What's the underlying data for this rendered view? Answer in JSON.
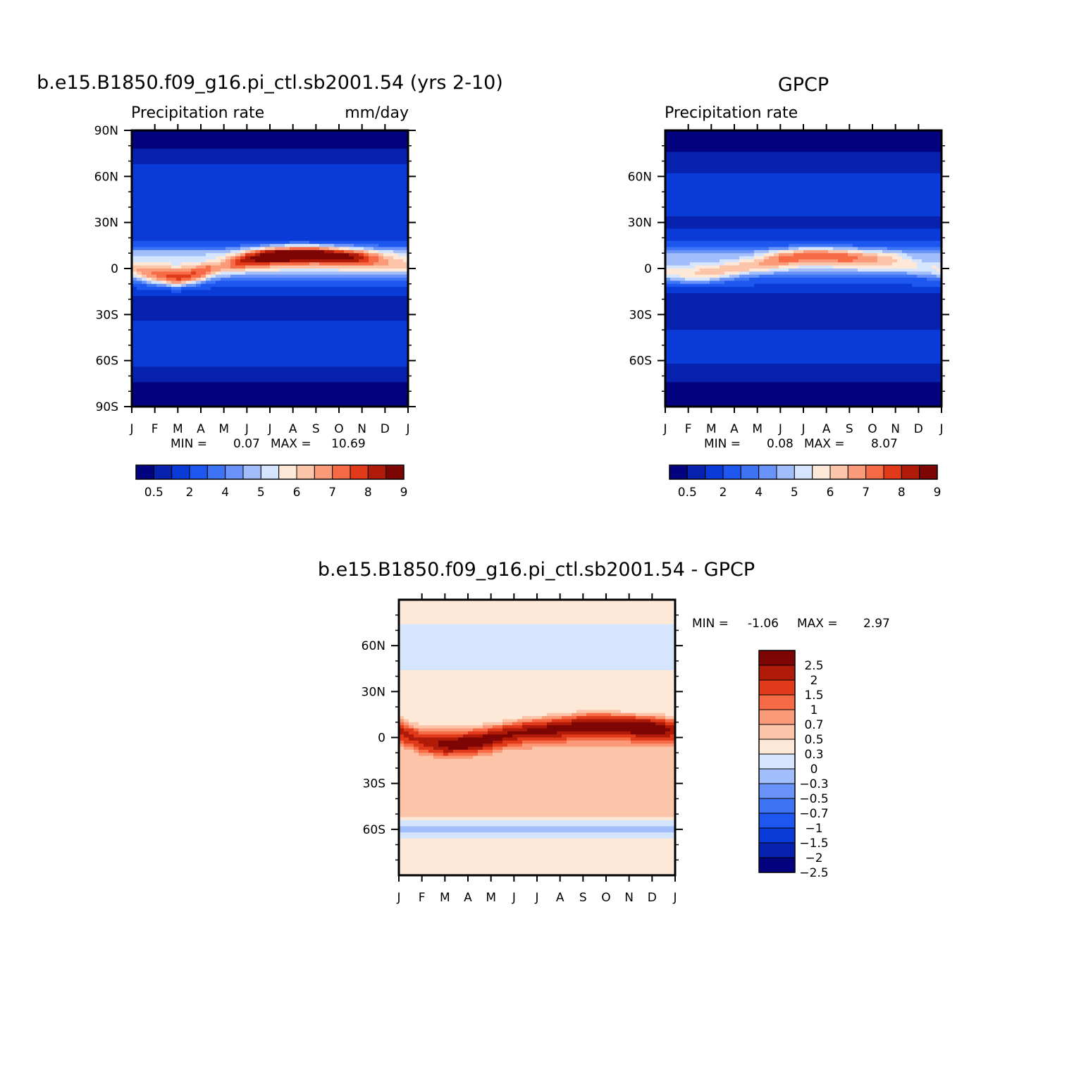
{
  "chart_data": [
    {
      "type": "heatmap",
      "title": "b.e15.B1850.f09_g16.pi_ctl.sb2001.54 (yrs 2-10)",
      "subtitle_left": "Precipitation rate",
      "subtitle_right": "mm/day",
      "x_tick_labels": [
        "J",
        "F",
        "M",
        "A",
        "M",
        "J",
        "J",
        "A",
        "S",
        "O",
        "N",
        "D",
        "J"
      ],
      "y_tick_labels": [
        "90N",
        "60N",
        "30N",
        "0",
        "30S",
        "60S",
        "90S"
      ],
      "y_tick_values": [
        90,
        60,
        30,
        0,
        -30,
        -60,
        -90
      ],
      "ylim": [
        -90,
        90
      ],
      "min_label": "MIN =",
      "min_value": "0.07",
      "max_label": "MAX =",
      "max_value": "10.69",
      "colorbar": {
        "orientation": "horizontal",
        "levels": [
          0.5,
          1,
          2,
          3,
          4,
          4.5,
          5,
          5.5,
          6,
          6.5,
          7,
          7.5,
          8,
          8.5,
          9
        ],
        "labels": [
          "0.5",
          "2",
          "4",
          "5",
          "6",
          "7",
          "8",
          "9"
        ],
        "colors": [
          "#04037f",
          "#0622ae",
          "#0a3bd8",
          "#1e56f0",
          "#3d74f5",
          "#6993f8",
          "#a1bdfa",
          "#d4e5fd",
          "#fee9d9",
          "#fcc4a8",
          "#fa9a78",
          "#f66b45",
          "#e03a1a",
          "#b01a08",
          "#7d0604"
        ]
      },
      "zonal_profile": {
        "latitudes": [
          -90,
          -80,
          -70,
          -60,
          -50,
          -40,
          -30,
          -20,
          -10,
          0,
          10,
          20,
          30,
          40,
          50,
          60,
          70,
          80,
          90
        ],
        "values": [
          0.3,
          0.6,
          1.2,
          2.4,
          3.0,
          2.8,
          1.6,
          1.4,
          3.6,
          5.8,
          5.4,
          2.2,
          2.0,
          2.4,
          2.8,
          2.6,
          1.8,
          0.9,
          0.4
        ]
      },
      "itcz": {
        "months": [
          "J",
          "F",
          "M",
          "A",
          "M",
          "J",
          "J",
          "A",
          "S",
          "O",
          "N",
          "D",
          "J"
        ],
        "center_latitude": [
          -2,
          -5,
          -7,
          -4,
          2,
          6,
          8,
          9,
          9,
          8,
          7,
          5,
          3
        ],
        "peak_rate": [
          6.5,
          7.5,
          8.2,
          7.8,
          7.2,
          8.8,
          10.2,
          10.6,
          10.3,
          9.6,
          8.6,
          7.2,
          6.5
        ]
      }
    },
    {
      "type": "heatmap",
      "title": "GPCP",
      "subtitle_left": "Precipitation rate",
      "x_tick_labels": [
        "J",
        "F",
        "M",
        "A",
        "M",
        "J",
        "J",
        "A",
        "S",
        "O",
        "N",
        "D",
        "J"
      ],
      "y_tick_labels": [
        "60N",
        "30N",
        "0",
        "30S",
        "60S"
      ],
      "y_tick_values": [
        60,
        30,
        0,
        -30,
        -60
      ],
      "ylim": [
        -90,
        90
      ],
      "min_label": "MIN =",
      "min_value": "0.08",
      "max_label": "MAX =",
      "max_value": "8.07",
      "colorbar": {
        "orientation": "horizontal",
        "levels": [
          0.5,
          1,
          2,
          3,
          4,
          4.5,
          5,
          5.5,
          6,
          6.5,
          7,
          7.5,
          8,
          8.5,
          9
        ],
        "labels": [
          "0.5",
          "2",
          "4",
          "5",
          "6",
          "7",
          "8",
          "9"
        ],
        "colors": [
          "#04037f",
          "#0622ae",
          "#0a3bd8",
          "#1e56f0",
          "#3d74f5",
          "#6993f8",
          "#a1bdfa",
          "#d4e5fd",
          "#fee9d9",
          "#fcc4a8",
          "#fa9a78",
          "#f66b45",
          "#e03a1a",
          "#b01a08",
          "#7d0604"
        ]
      },
      "zonal_profile": {
        "latitudes": [
          -90,
          -80,
          -70,
          -60,
          -50,
          -40,
          -30,
          -20,
          -10,
          0,
          10,
          20,
          30,
          40,
          50,
          60,
          70,
          80,
          90
        ],
        "values": [
          0.3,
          0.6,
          1.3,
          2.1,
          2.5,
          2.0,
          1.3,
          1.1,
          3.2,
          5.2,
          5.0,
          2.2,
          1.8,
          2.3,
          2.5,
          2.2,
          1.5,
          0.7,
          0.3
        ]
      },
      "itcz": {
        "months": [
          "J",
          "F",
          "M",
          "A",
          "M",
          "J",
          "J",
          "A",
          "S",
          "O",
          "N",
          "D",
          "J"
        ],
        "center_latitude": [
          -4,
          -5,
          -4,
          -1,
          3,
          6,
          8,
          8,
          7,
          6,
          5,
          1,
          -3
        ],
        "peak_rate": [
          5.8,
          6.2,
          6.6,
          6.8,
          7.0,
          7.6,
          8.0,
          8.0,
          7.8,
          7.2,
          6.6,
          6.0,
          5.8
        ]
      }
    },
    {
      "type": "heatmap",
      "title": "b.e15.B1850.f09_g16.pi_ctl.sb2001.54 - GPCP",
      "x_tick_labels": [
        "J",
        "F",
        "M",
        "A",
        "M",
        "J",
        "J",
        "A",
        "S",
        "O",
        "N",
        "D",
        "J"
      ],
      "y_tick_labels": [
        "60N",
        "30N",
        "0",
        "30S",
        "60S"
      ],
      "y_tick_values": [
        60,
        30,
        0,
        -30,
        -60
      ],
      "ylim": [
        -90,
        90
      ],
      "min_label": "MIN =",
      "min_value": "-1.06",
      "max_label": "MAX =",
      "max_value": "2.97",
      "colorbar": {
        "orientation": "vertical",
        "levels": [
          -3,
          -2.5,
          -2,
          -1.5,
          -1,
          -0.7,
          -0.5,
          -0.3,
          0,
          0.3,
          0.5,
          0.7,
          1,
          1.5,
          2,
          2.5,
          3
        ],
        "labels": [
          "2.5",
          "2",
          "1.5",
          "1",
          "0.7",
          "0.5",
          "0.3",
          "0",
          "-0.3",
          "-0.5",
          "-0.7",
          "-1",
          "-1.5",
          "-2",
          "-2.5"
        ],
        "colors": [
          "#04037f",
          "#0622ae",
          "#0a3bd8",
          "#1e56f0",
          "#3d74f5",
          "#6993f8",
          "#a1bdfa",
          "#d4e5fd",
          "#fee9d9",
          "#fcc4a8",
          "#fa9a78",
          "#f66b45",
          "#e03a1a",
          "#b01a08",
          "#7d0604"
        ]
      },
      "zonal_profile": {
        "latitudes": [
          -90,
          -80,
          -70,
          -60,
          -50,
          -40,
          -30,
          -20,
          -10,
          0,
          10,
          20,
          30,
          40,
          50,
          60,
          70,
          80,
          90
        ],
        "values": [
          0.05,
          0.1,
          0.3,
          -0.5,
          0.4,
          0.5,
          0.3,
          0.3,
          0.4,
          0.6,
          0.2,
          0.1,
          0.25,
          0.15,
          -0.2,
          -0.3,
          -0.1,
          0.15,
          0.05
        ]
      },
      "itcz": {
        "months": [
          "J",
          "F",
          "M",
          "A",
          "M",
          "J",
          "J",
          "A",
          "S",
          "O",
          "N",
          "D",
          "J"
        ],
        "center_latitude": [
          5,
          -3,
          -5,
          -4,
          -1,
          3,
          5,
          6,
          8,
          8,
          7,
          6,
          5
        ],
        "peak_rate": [
          1.6,
          1.6,
          2.2,
          2.6,
          2.4,
          2.0,
          2.1,
          2.3,
          2.4,
          2.6,
          2.7,
          2.9,
          1.6
        ]
      }
    }
  ]
}
